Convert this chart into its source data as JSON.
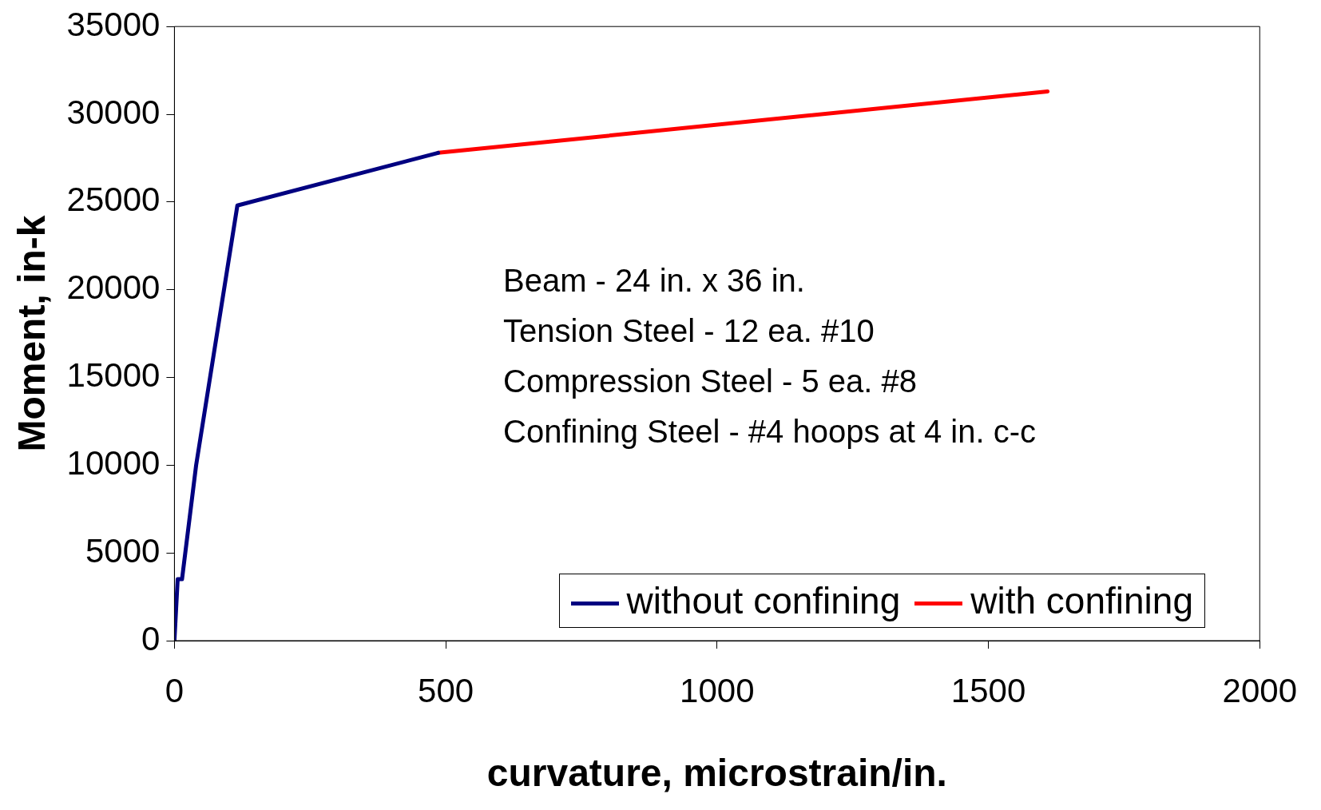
{
  "chart_data": {
    "type": "line",
    "xlabel": "curvature, microstrain/in.",
    "ylabel": "Moment, in-k",
    "xlim": [
      0,
      2000
    ],
    "xticks": [
      0,
      500,
      1000,
      1500,
      2000
    ],
    "ylim": [
      0,
      35000
    ],
    "yticks": [
      0,
      5000,
      10000,
      15000,
      20000,
      25000,
      30000,
      35000
    ],
    "grid": false,
    "legend": "bottom right",
    "marker": "none",
    "line_style": "solid",
    "annotations": [
      "Beam - 24 in. x 36 in.",
      "Tension Steel - 12 ea. #10",
      "Compression Steel - 5 ea. #8",
      "Confining Steel - #4 hoops at 4 in. c-c"
    ],
    "series": [
      {
        "name": "without confining",
        "color": "#000080",
        "x": [
          0,
          6,
          14,
          40,
          116,
          486
        ],
        "values": [
          0,
          3500,
          3500,
          10000,
          24800,
          27800
        ]
      },
      {
        "name": "with confining",
        "color": "#ff0000",
        "x": [
          486,
          1609
        ],
        "values": [
          27800,
          31300
        ]
      }
    ]
  }
}
